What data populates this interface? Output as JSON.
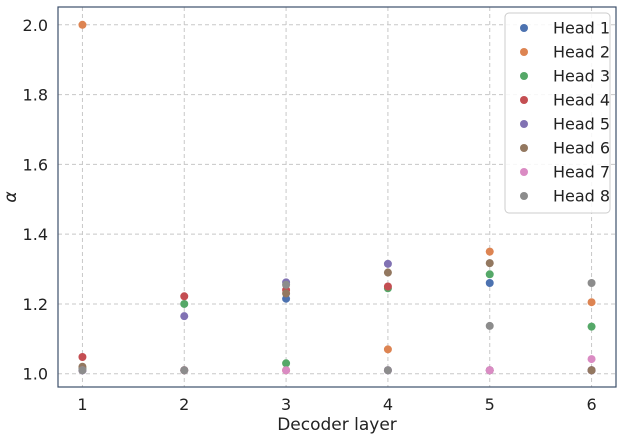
{
  "chart_data": {
    "type": "scatter",
    "title": "",
    "xlabel": "Decoder layer",
    "ylabel": "α",
    "xlim": [
      0.76,
      6.24
    ],
    "ylim": [
      0.962,
      2.051
    ],
    "xticks": [
      1,
      2,
      3,
      4,
      5,
      6
    ],
    "yticks": [
      1.0,
      1.2,
      1.4,
      1.6,
      1.8,
      2.0
    ],
    "xtick_labels": [
      "1",
      "2",
      "3",
      "4",
      "5",
      "6"
    ],
    "ytick_labels": [
      "1.0",
      "1.2",
      "1.4",
      "1.6",
      "1.8",
      "2.0"
    ],
    "grid": true,
    "legend_position": "top-right",
    "x": [
      1,
      2,
      3,
      4,
      5,
      6
    ],
    "series": [
      {
        "name": "Head 1",
        "color": "#4c72b0",
        "values": [
          1.01,
          1.01,
          1.215,
          1.01,
          1.26,
          1.01
        ]
      },
      {
        "name": "Head 2",
        "color": "#dd8452",
        "values": [
          2.0,
          1.01,
          1.01,
          1.07,
          1.35,
          1.205
        ]
      },
      {
        "name": "Head 3",
        "color": "#55a868",
        "values": [
          1.015,
          1.2,
          1.03,
          1.245,
          1.285,
          1.135
        ]
      },
      {
        "name": "Head 4",
        "color": "#c44e52",
        "values": [
          1.048,
          1.222,
          1.24,
          1.25,
          1.01,
          1.01
        ]
      },
      {
        "name": "Head 5",
        "color": "#8172b3",
        "values": [
          1.01,
          1.165,
          1.262,
          1.315,
          1.01,
          1.01
        ]
      },
      {
        "name": "Head 6",
        "color": "#937860",
        "values": [
          1.02,
          1.01,
          1.23,
          1.29,
          1.317,
          1.01
        ]
      },
      {
        "name": "Head 7",
        "color": "#da8bc3",
        "values": [
          1.01,
          1.01,
          1.01,
          1.01,
          1.01,
          1.042
        ]
      },
      {
        "name": "Head 8",
        "color": "#8c8c8c",
        "values": [
          1.01,
          1.01,
          1.255,
          1.01,
          1.137,
          1.26
        ]
      }
    ]
  }
}
